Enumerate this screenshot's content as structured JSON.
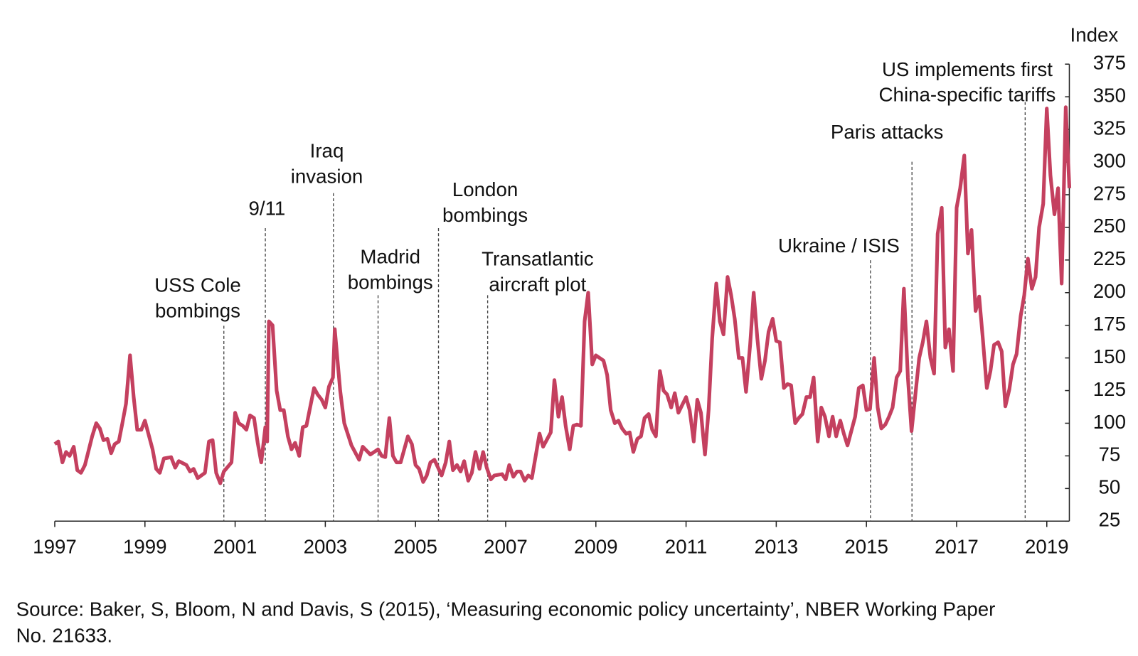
{
  "chart_data": {
    "type": "line",
    "y_label": "Index",
    "source": [
      "Source: Baker, S, Bloom, N and Davis, S (2015), ‘Measuring economic policy uncertainty’, NBER Working Paper",
      "No. 21633."
    ],
    "xlim": [
      1997,
      2019.5
    ],
    "xticks": [
      1997,
      1999,
      2001,
      2003,
      2005,
      2007,
      2009,
      2011,
      2013,
      2015,
      2017,
      2019
    ],
    "ylim": [
      25,
      375
    ],
    "yticks": [
      25,
      50,
      75,
      100,
      125,
      150,
      175,
      200,
      225,
      250,
      275,
      300,
      325,
      350,
      375
    ],
    "x": [
      1997.0,
      1997.08,
      1997.17,
      1997.25,
      1997.33,
      1997.42,
      1997.5,
      1997.58,
      1997.67,
      1997.83,
      1997.92,
      1998.0,
      1998.08,
      1998.17,
      1998.25,
      1998.33,
      1998.42,
      1998.5,
      1998.58,
      1998.67,
      1998.75,
      1998.83,
      1998.92,
      1999.0,
      1999.17,
      1999.25,
      1999.33,
      1999.42,
      1999.58,
      1999.67,
      1999.75,
      1999.92,
      2000.0,
      2000.08,
      2000.17,
      2000.33,
      2000.42,
      2000.5,
      2000.58,
      2000.67,
      2000.75,
      2000.92,
      2001.0,
      2001.08,
      2001.17,
      2001.25,
      2001.33,
      2001.42,
      2001.5,
      2001.58,
      2001.67,
      2001.71,
      2001.75,
      2001.83,
      2001.92,
      2002.0,
      2002.08,
      2002.17,
      2002.25,
      2002.33,
      2002.42,
      2002.5,
      2002.58,
      2002.75,
      2002.83,
      2002.92,
      2003.0,
      2003.08,
      2003.17,
      2003.21,
      2003.33,
      2003.42,
      2003.58,
      2003.75,
      2003.83,
      2004.0,
      2004.17,
      2004.25,
      2004.33,
      2004.42,
      2004.5,
      2004.58,
      2004.67,
      2004.83,
      2004.92,
      2005.0,
      2005.08,
      2005.17,
      2005.25,
      2005.33,
      2005.42,
      2005.5,
      2005.58,
      2005.67,
      2005.75,
      2005.83,
      2005.92,
      2006.0,
      2006.08,
      2006.17,
      2006.25,
      2006.33,
      2006.42,
      2006.5,
      2006.58,
      2006.67,
      2006.75,
      2006.92,
      2007.0,
      2007.08,
      2007.17,
      2007.25,
      2007.33,
      2007.42,
      2007.5,
      2007.58,
      2007.75,
      2007.83,
      2008.0,
      2008.08,
      2008.17,
      2008.25,
      2008.33,
      2008.42,
      2008.5,
      2008.58,
      2008.67,
      2008.75,
      2008.83,
      2008.92,
      2009.0,
      2009.17,
      2009.25,
      2009.33,
      2009.42,
      2009.5,
      2009.58,
      2009.67,
      2009.75,
      2009.83,
      2009.92,
      2010.0,
      2010.08,
      2010.17,
      2010.25,
      2010.33,
      2010.42,
      2010.5,
      2010.58,
      2010.67,
      2010.75,
      2010.83,
      2011.0,
      2011.08,
      2011.17,
      2011.25,
      2011.33,
      2011.42,
      2011.5,
      2011.58,
      2011.67,
      2011.75,
      2011.83,
      2011.92,
      2012.0,
      2012.08,
      2012.17,
      2012.25,
      2012.33,
      2012.42,
      2012.5,
      2012.58,
      2012.67,
      2012.75,
      2012.83,
      2012.92,
      2013.0,
      2013.08,
      2013.17,
      2013.25,
      2013.33,
      2013.42,
      2013.5,
      2013.58,
      2013.67,
      2013.75,
      2013.83,
      2013.92,
      2014.0,
      2014.08,
      2014.17,
      2014.25,
      2014.33,
      2014.42,
      2014.5,
      2014.58,
      2014.75,
      2014.83,
      2014.92,
      2015.0,
      2015.08,
      2015.17,
      2015.25,
      2015.33,
      2015.42,
      2015.5,
      2015.58,
      2015.67,
      2015.75,
      2015.83,
      2015.92,
      2016.0,
      2016.08,
      2016.17,
      2016.25,
      2016.33,
      2016.42,
      2016.5,
      2016.58,
      2016.67,
      2016.75,
      2016.83,
      2016.92,
      2017.0,
      2017.08,
      2017.17,
      2017.25,
      2017.33,
      2017.42,
      2017.5,
      2017.58,
      2017.67,
      2017.75,
      2017.83,
      2017.92,
      2018.0,
      2018.08,
      2018.17,
      2018.25,
      2018.33,
      2018.42,
      2018.5,
      2018.58,
      2018.67,
      2018.75,
      2018.83,
      2018.92,
      2019.0,
      2019.08,
      2019.17,
      2019.25,
      2019.33,
      2019.42,
      2019.5
    ],
    "series": [
      {
        "color": "#c4405f",
        "values": [
          84,
          86,
          70,
          78,
          75,
          82,
          64,
          62,
          68,
          90,
          100,
          96,
          87,
          88,
          77,
          84,
          86,
          100,
          115,
          152,
          120,
          95,
          95,
          102,
          80,
          65,
          62,
          73,
          74,
          66,
          71,
          68,
          63,
          65,
          58,
          62,
          86,
          87,
          62,
          54,
          63,
          70,
          108,
          100,
          98,
          95,
          106,
          104,
          85,
          70,
          97,
          86,
          178,
          175,
          125,
          110,
          110,
          90,
          80,
          85,
          75,
          97,
          98,
          127,
          122,
          118,
          112,
          128,
          135,
          172,
          125,
          100,
          83,
          72,
          82,
          76,
          80,
          75,
          74,
          104,
          75,
          70,
          70,
          90,
          84,
          68,
          65,
          55,
          60,
          70,
          72,
          66,
          60,
          70,
          86,
          64,
          68,
          63,
          71,
          56,
          62,
          78,
          65,
          78,
          66,
          57,
          60,
          61,
          57,
          68,
          59,
          63,
          63,
          56,
          60,
          58,
          92,
          82,
          93,
          133,
          105,
          120,
          98,
          80,
          98,
          99,
          98,
          178,
          200,
          145,
          152,
          148,
          137,
          110,
          100,
          102,
          96,
          92,
          93,
          78,
          88,
          90,
          104,
          107,
          95,
          90,
          140,
          125,
          122,
          112,
          123,
          108,
          120,
          110,
          86,
          118,
          108,
          76,
          110,
          165,
          207,
          178,
          168,
          212,
          198,
          180,
          150,
          150,
          124,
          160,
          200,
          165,
          134,
          148,
          170,
          180,
          163,
          162,
          127,
          130,
          129,
          100,
          104,
          107,
          120,
          120,
          135,
          86,
          112,
          105,
          90,
          105,
          90,
          102,
          92,
          83,
          105,
          127,
          129,
          110,
          111,
          150,
          112,
          96,
          99,
          105,
          112,
          135,
          140,
          203,
          135,
          94,
          120,
          150,
          162,
          178,
          150,
          138,
          245,
          265,
          158,
          172,
          140,
          265,
          280,
          305,
          230,
          248,
          186,
          197,
          165,
          127,
          140,
          160,
          162,
          155,
          113,
          126,
          145,
          153,
          182,
          198,
          226,
          203,
          212,
          250,
          268,
          341,
          290,
          260,
          280,
          207,
          342,
          280
        ]
      }
    ],
    "annotations": [
      {
        "text": [
          "USS Cole",
          "bombings"
        ],
        "x": 2000.75
      },
      {
        "text": [
          "9/11"
        ],
        "x": 2001.67
      },
      {
        "text": [
          "Iraq",
          "invasion"
        ],
        "x": 2003.18
      },
      {
        "text": [
          "Madrid",
          "bombings"
        ],
        "x": 2004.17
      },
      {
        "text": [
          "London",
          "bombings"
        ],
        "x": 2005.51
      },
      {
        "text": [
          "Transatlantic",
          "aircraft plot"
        ],
        "x": 2006.6
      },
      {
        "text": [
          "Ukraine / ISIS"
        ],
        "x": 2015.09
      },
      {
        "text": [
          "Paris attacks"
        ],
        "x": 2016.01
      },
      {
        "text": [
          "US implements first",
          "China-specific tariffs"
        ],
        "x": 2018.52
      }
    ]
  }
}
